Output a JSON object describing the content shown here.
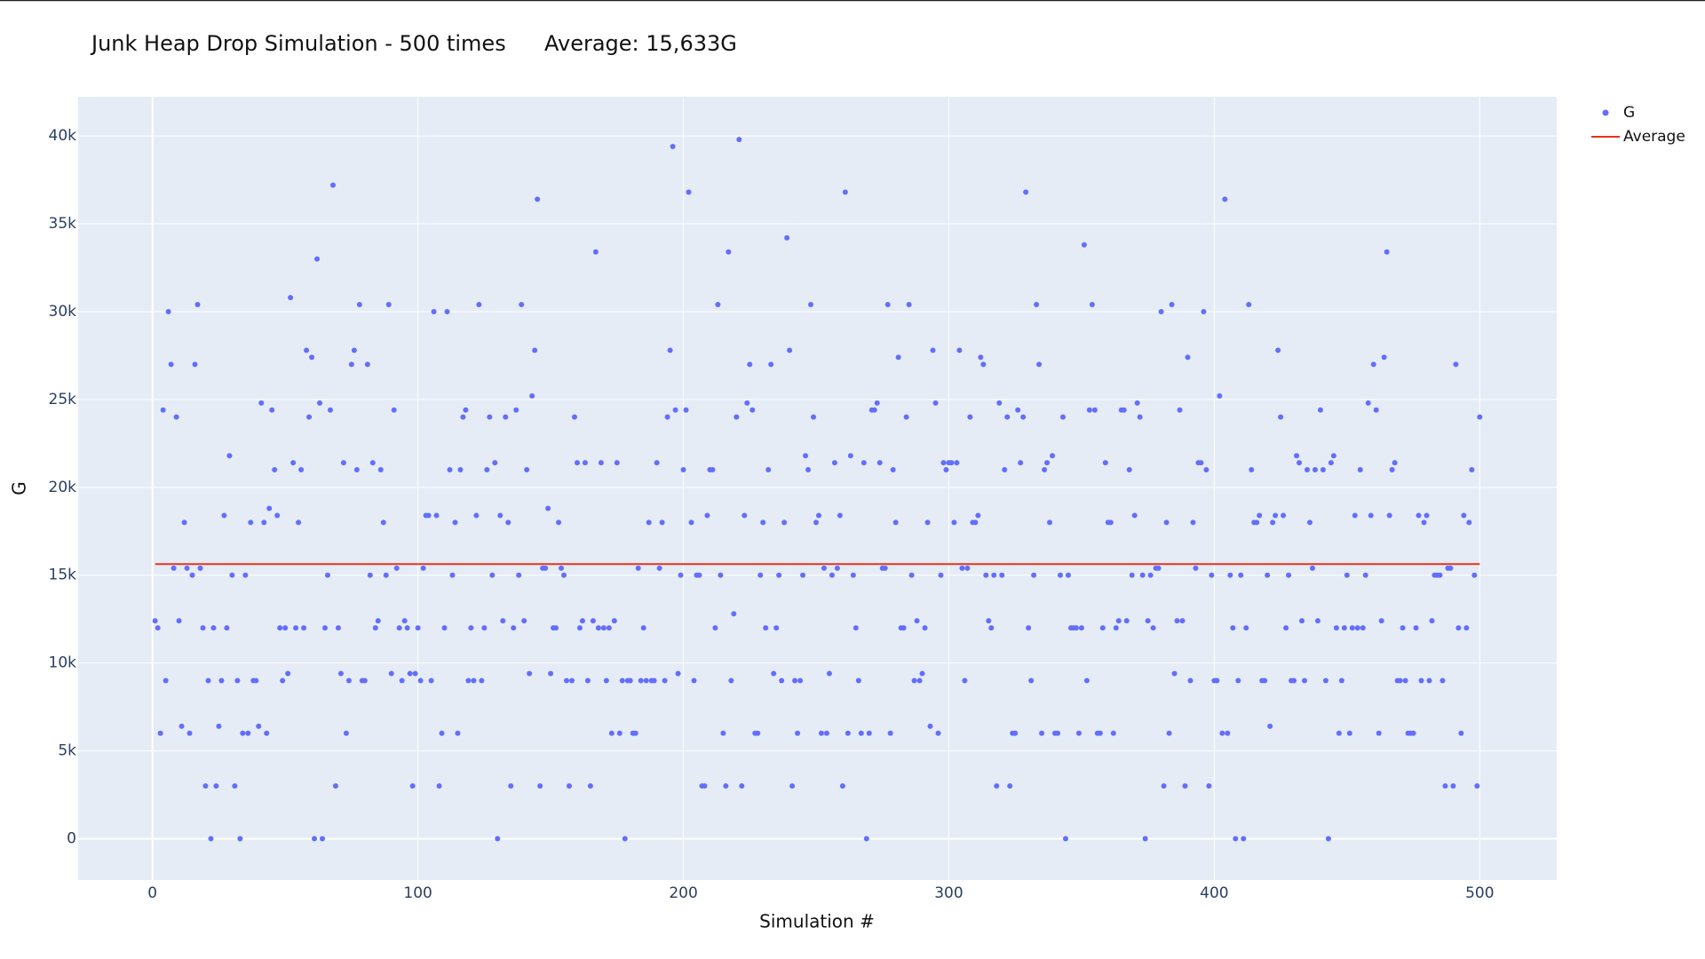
{
  "chart_data": {
    "type": "scatter",
    "title": "Junk Heap Drop Simulation - 500 times",
    "subtitle": "Average: 15,633G",
    "x_label": "Simulation #",
    "y_label": "G",
    "xlim": [
      -28,
      529
    ],
    "ylim": [
      -2350,
      42230
    ],
    "xticks": [
      0,
      100,
      200,
      300,
      400,
      500
    ],
    "yticks": [
      0,
      {
        "value": 5000,
        "label": "5k"
      },
      {
        "value": 10000,
        "label": "10k"
      },
      {
        "value": 15000,
        "label": "15k"
      },
      {
        "value": 20000,
        "label": "20k"
      },
      {
        "value": 25000,
        "label": "25k"
      },
      {
        "value": 30000,
        "label": "30k"
      },
      {
        "value": 35000,
        "label": "35k"
      },
      {
        "value": 40000,
        "label": "40k"
      }
    ],
    "grid": true,
    "legend": "top-right",
    "series": [
      {
        "name": "G",
        "color": "#636efa",
        "mode": "markers",
        "x": [
          1,
          2,
          3,
          4,
          5,
          6,
          7,
          8,
          9,
          10,
          11,
          12,
          13,
          14,
          15,
          16,
          17,
          18,
          19,
          20,
          21,
          22,
          23,
          24,
          25,
          26,
          27,
          28,
          29,
          30,
          31,
          32,
          33,
          34,
          35,
          36,
          37,
          38,
          39,
          40,
          41,
          42,
          43,
          44,
          45,
          46,
          47,
          48,
          49,
          50,
          51,
          52,
          53,
          54,
          55,
          56,
          57,
          58,
          59,
          60,
          61,
          62,
          63,
          64,
          65,
          66,
          67,
          68,
          69,
          70,
          71,
          72,
          73,
          74,
          75,
          76,
          77,
          78,
          79,
          80,
          81,
          82,
          83,
          84,
          85,
          86,
          87,
          88,
          89,
          90,
          91,
          92,
          93,
          94,
          95,
          96,
          97,
          98,
          99,
          100,
          101,
          102,
          103,
          104,
          105,
          106,
          107,
          108,
          109,
          110,
          111,
          112,
          113,
          114,
          115,
          116,
          117,
          118,
          119,
          120,
          121,
          122,
          123,
          124,
          125,
          126,
          127,
          128,
          129,
          130,
          131,
          132,
          133,
          134,
          135,
          136,
          137,
          138,
          139,
          140,
          141,
          142,
          143,
          144,
          145,
          146,
          147,
          148,
          149,
          150,
          151,
          152,
          153,
          154,
          155,
          156,
          157,
          158,
          159,
          160,
          161,
          162,
          163,
          164,
          165,
          166,
          167,
          168,
          169,
          170,
          171,
          172,
          173,
          174,
          175,
          176,
          177,
          178,
          179,
          180,
          181,
          182,
          183,
          184,
          185,
          186,
          187,
          188,
          189,
          190,
          191,
          192,
          193,
          194,
          195,
          196,
          197,
          198,
          199,
          200,
          201,
          202,
          203,
          204,
          205,
          206,
          207,
          208,
          209,
          210,
          211,
          212,
          213,
          214,
          215,
          216,
          217,
          218,
          219,
          220,
          221,
          222,
          223,
          224,
          225,
          226,
          227,
          228,
          229,
          230,
          231,
          232,
          233,
          234,
          235,
          236,
          237,
          238,
          239,
          240,
          241,
          242,
          243,
          244,
          245,
          246,
          247,
          248,
          249,
          250,
          251,
          252,
          253,
          254,
          255,
          256,
          257,
          258,
          259,
          260,
          261,
          262,
          263,
          264,
          265,
          266,
          267,
          268,
          269,
          270,
          271,
          272,
          273,
          274,
          275,
          276,
          277,
          278,
          279,
          280,
          281,
          282,
          283,
          284,
          285,
          286,
          287,
          288,
          289,
          290,
          291,
          292,
          293,
          294,
          295,
          296,
          297,
          298,
          299,
          300,
          301,
          302,
          303,
          304,
          305,
          306,
          307,
          308,
          309,
          310,
          311,
          312,
          313,
          314,
          315,
          316,
          317,
          318,
          319,
          320,
          321,
          322,
          323,
          324,
          325,
          326,
          327,
          328,
          329,
          330,
          331,
          332,
          333,
          334,
          335,
          336,
          337,
          338,
          339,
          340,
          341,
          342,
          343,
          344,
          345,
          346,
          347,
          348,
          349,
          350,
          351,
          352,
          353,
          354,
          355,
          356,
          357,
          358,
          359,
          360,
          361,
          362,
          363,
          364,
          365,
          366,
          367,
          368,
          369,
          370,
          371,
          372,
          373,
          374,
          375,
          376,
          377,
          378,
          379,
          380,
          381,
          382,
          383,
          384,
          385,
          386,
          387,
          388,
          389,
          390,
          391,
          392,
          393,
          394,
          395,
          396,
          397,
          398,
          399,
          400,
          401,
          402,
          403,
          404,
          405,
          406,
          407,
          408,
          409,
          410,
          411,
          412,
          413,
          414,
          415,
          416,
          417,
          418,
          419,
          420,
          421,
          422,
          423,
          424,
          425,
          426,
          427,
          428,
          429,
          430,
          431,
          432,
          433,
          434,
          435,
          436,
          437,
          438,
          439,
          440,
          441,
          442,
          443,
          444,
          445,
          446,
          447,
          448,
          449,
          450,
          451,
          452,
          453,
          454,
          455,
          456,
          457,
          458,
          459,
          460,
          461,
          462,
          463,
          464,
          465,
          466,
          467,
          468,
          469,
          470,
          471,
          472,
          473,
          474,
          475,
          476,
          477,
          478,
          479,
          480,
          481,
          482,
          483,
          484,
          485,
          486,
          487,
          488,
          489,
          490,
          491,
          492,
          493,
          494,
          495,
          496,
          497,
          498,
          499,
          500
        ],
        "values": [
          12400,
          12000,
          6000,
          24400,
          9000,
          30000,
          27000,
          15400,
          24000,
          12400,
          6400,
          18000,
          15400,
          6000,
          15000,
          27000,
          30400,
          15400,
          12000,
          3000,
          9000,
          0,
          12000,
          3000,
          6400,
          9000,
          18400,
          12000,
          21800,
          15000,
          3000,
          9000,
          0,
          6000,
          15000,
          6000,
          18000,
          9000,
          9000,
          6400,
          24800,
          18000,
          6000,
          18800,
          24400,
          21000,
          18400,
          12000,
          9000,
          12000,
          9400,
          30800,
          21400,
          12000,
          18000,
          21000,
          12000,
          27800,
          24000,
          27400,
          0,
          33000,
          24800,
          0,
          12000,
          15000,
          24400,
          37200,
          3000,
          12000,
          9400,
          21400,
          6000,
          9000,
          27000,
          27800,
          21000,
          30400,
          9000,
          9000,
          27000,
          15000,
          21400,
          12000,
          12400,
          21000,
          18000,
          15000,
          30400,
          9400,
          24400,
          15400,
          12000,
          9000,
          12400,
          12000,
          9400,
          3000,
          9400,
          12000,
          9000,
          15400,
          18400,
          18400,
          9000,
          30000,
          18400,
          3000,
          6000,
          12000,
          30000,
          21000,
          15000,
          18000,
          6000,
          21000,
          24000,
          24400,
          9000,
          12000,
          9000,
          18400,
          30400,
          9000,
          12000,
          21000,
          24000,
          15000,
          21400,
          0,
          18400,
          12400,
          24000,
          18000,
          3000,
          12000,
          24400,
          15000,
          30400,
          12400,
          21000,
          9400,
          25200,
          27800,
          36400,
          3000,
          15400,
          15400,
          18800,
          9400,
          12000,
          12000,
          18000,
          15400,
          15000,
          9000,
          3000,
          9000,
          24000,
          21400,
          12000,
          12400,
          21400,
          9000,
          3000,
          12400,
          33400,
          12000,
          21400,
          12000,
          9000,
          12000,
          6000,
          12400,
          21400,
          6000,
          9000,
          0,
          9000,
          9000,
          6000,
          6000,
          15400,
          9000,
          12000,
          9000,
          18000,
          9000,
          9000,
          21400,
          15400,
          18000,
          9000,
          24000,
          27800,
          39400,
          24400,
          9400,
          15000,
          21000,
          24400,
          36800,
          18000,
          9000,
          15000,
          15000,
          3000,
          3000,
          18400,
          21000,
          21000,
          12000,
          30400,
          15000,
          6000,
          3000,
          33400,
          9000,
          12800,
          24000,
          39800,
          3000,
          18400,
          24800,
          27000,
          24400,
          6000,
          6000,
          15000,
          18000,
          12000,
          21000,
          27000,
          9400,
          12000,
          15000,
          9000,
          18000,
          34200,
          27800,
          3000,
          9000,
          6000,
          9000,
          15000,
          21800,
          21000,
          30400,
          24000,
          18000,
          18400,
          6000,
          15400,
          6000,
          9400,
          15000,
          21400,
          15400,
          18400,
          3000,
          36800,
          6000,
          21800,
          15000,
          12000,
          9000,
          6000,
          21400,
          0,
          6000,
          24400,
          24400,
          24800,
          21400,
          15400,
          15400,
          30400,
          6000,
          21000,
          18000,
          27400,
          12000,
          12000,
          24000,
          30400,
          15000,
          9000,
          12400,
          9000,
          9400,
          12000,
          18000,
          6400,
          27800,
          24800,
          6000,
          15000,
          21400,
          21000,
          21400,
          21400,
          18000,
          21400,
          27800,
          15400,
          9000,
          15400,
          24000,
          18000,
          18000,
          18400,
          27400,
          27000,
          15000,
          12400,
          12000,
          15000,
          3000,
          24800,
          15000,
          21000,
          24000,
          3000,
          6000,
          6000,
          24400,
          21400,
          24000,
          36800,
          12000,
          9000,
          15000,
          30400,
          27000,
          6000,
          21000,
          21400,
          18000,
          21800,
          6000,
          6000,
          15000,
          24000,
          0,
          15000,
          12000,
          12000,
          12000,
          6000,
          12000,
          33800,
          9000,
          24400,
          30400,
          24400,
          6000,
          6000,
          12000,
          21400,
          18000,
          18000,
          6000,
          12000,
          12400,
          24400,
          24400,
          12400,
          21000,
          15000,
          18400,
          24800,
          24000,
          15000,
          0,
          12400,
          15000,
          12000,
          15400,
          15400,
          30000,
          3000,
          18000,
          6000,
          30400,
          9400,
          12400,
          24400,
          12400,
          3000,
          27400,
          9000,
          18000,
          15400,
          21400,
          21400,
          30000,
          21000,
          3000,
          15000,
          9000,
          9000,
          25200,
          6000,
          36400,
          6000,
          15000,
          12000,
          0,
          9000,
          15000,
          0,
          12000,
          30400,
          21000,
          18000,
          18000,
          18400,
          9000,
          9000,
          15000,
          6400,
          18000,
          18400,
          27800,
          24000,
          18400,
          12000,
          15000,
          9000,
          9000,
          21800,
          21400,
          12400,
          9000,
          21000,
          18000,
          15400,
          21000,
          12400,
          24400,
          21000,
          9000,
          0,
          21400,
          21800,
          12000,
          6000,
          9000,
          12000,
          15000,
          6000,
          12000,
          18400,
          12000,
          21000,
          12000,
          15000,
          24800,
          18400,
          27000,
          24400,
          6000,
          12400,
          27400,
          33400,
          18400,
          21000,
          21400,
          9000,
          9000,
          12000,
          9000,
          6000,
          6000,
          6000,
          12000,
          18400,
          9000,
          18000,
          18400,
          9000,
          12400,
          15000,
          15000,
          15000,
          9000,
          3000,
          15400,
          15400,
          3000,
          27000,
          12000,
          6000,
          18400,
          12000,
          18000,
          21000,
          15000,
          3000,
          24000
        ]
      },
      {
        "name": "Average",
        "color": "#e8321e",
        "mode": "lines",
        "x": [
          1,
          500
        ],
        "values": [
          15633,
          15633
        ]
      }
    ]
  }
}
